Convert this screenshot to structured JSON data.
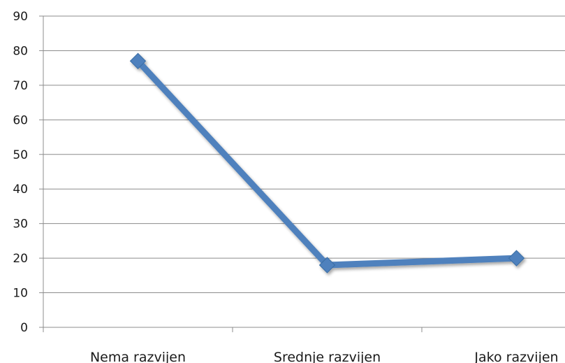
{
  "chart_data": {
    "type": "line",
    "title": "",
    "xlabel": "",
    "ylabel": "",
    "categories": [
      "Nema razvijen",
      "Srednje razvijen",
      "Jako razvijen"
    ],
    "series": [
      {
        "values": [
          77,
          18,
          20
        ],
        "color": "#4f81bd"
      }
    ],
    "ylim": [
      0,
      90
    ],
    "yticks": [
      0,
      10,
      20,
      30,
      40,
      50,
      60,
      70,
      80,
      90
    ],
    "grid": true,
    "legend": "none",
    "marker": "diamond",
    "grid_color": "#8c8c8c"
  }
}
